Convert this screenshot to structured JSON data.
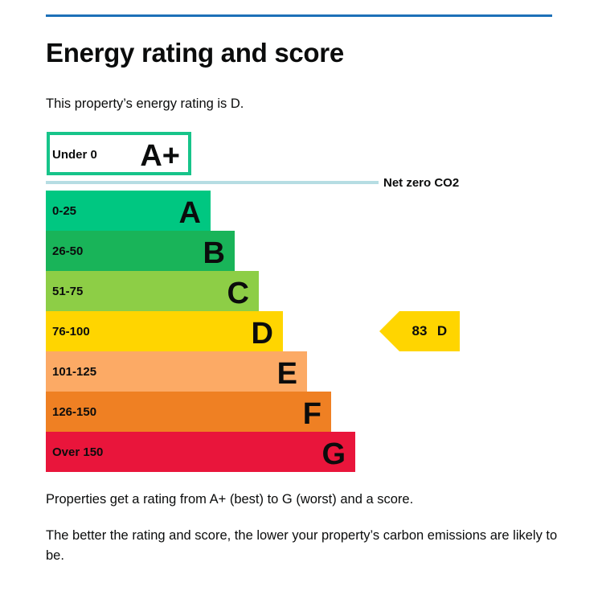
{
  "page": {
    "title": "Energy rating and score",
    "intro": "This property’s energy rating is D.",
    "footer_paragraph_1": "Properties get a rating from A+ (best) to G (worst) and a score.",
    "footer_paragraph_2": "The better the rating and score, the lower your property’s carbon emissions are likely to be."
  },
  "colors": {
    "accent_rule": "#1d70b8",
    "net_zero_line": "#b6dde3"
  },
  "chart_data": {
    "type": "bar",
    "title": "",
    "xlabel": "",
    "ylabel": "",
    "top_band": {
      "range": "Under 0",
      "letter": "A+",
      "outline_color": "#17c48a"
    },
    "reference_line": {
      "label": "Net zero CO2"
    },
    "bands": [
      {
        "range": "0-25",
        "letter": "A",
        "color": "#00c781"
      },
      {
        "range": "26-50",
        "letter": "B",
        "color": "#19b459"
      },
      {
        "range": "51-75",
        "letter": "C",
        "color": "#8dce46"
      },
      {
        "range": "76-100",
        "letter": "D",
        "color": "#ffd500"
      },
      {
        "range": "101-125",
        "letter": "E",
        "color": "#fcaa65"
      },
      {
        "range": "126-150",
        "letter": "F",
        "color": "#ef8023"
      },
      {
        "range": "Over 150",
        "letter": "G",
        "color": "#e9153b"
      }
    ],
    "current": {
      "score": "83",
      "rating": "D",
      "color": "#ffd500"
    }
  }
}
